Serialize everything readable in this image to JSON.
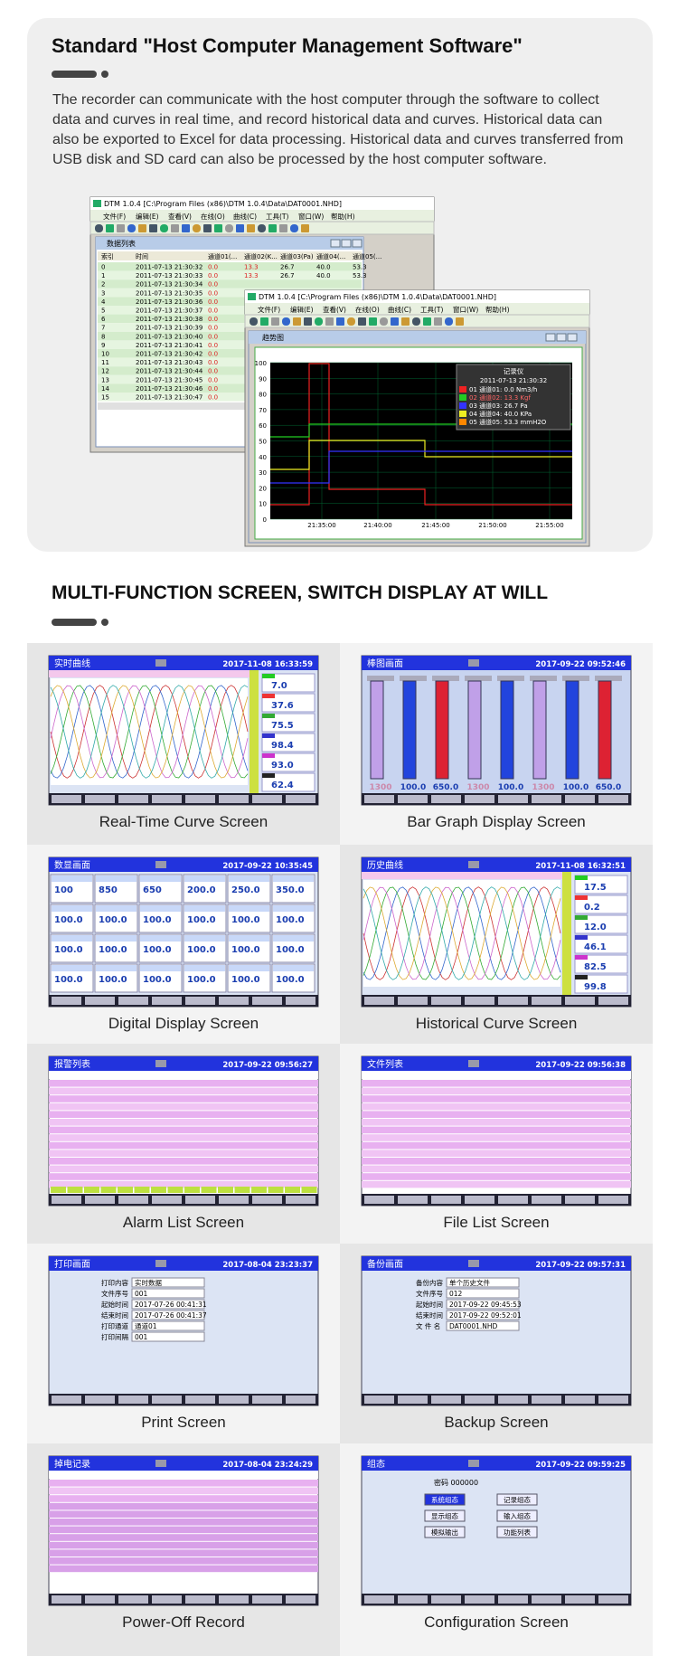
{
  "header": {
    "title": "Standard \"Host Computer Management Software\"",
    "paragraph": "The recorder can communicate with the host computer through the software to collect data and curves in real time, and record historical data and curves. Historical data can also be exported to Excel for data processing. Historical data and curves transferred from USB disk and SD card can also be processed by the host computer software."
  },
  "software": {
    "window_title": "DTM 1.0.4 [C:\\Program Files (x86)\\DTM 1.0.4\\Data\\DAT0001.NHD]",
    "menu": [
      "文件(F)",
      "编辑(E)",
      "查看(V)",
      "在线(O)",
      "曲线(C)",
      "工具(T)",
      "窗口(W)",
      "帮助(H)"
    ],
    "list_title": "数据列表",
    "list_columns": [
      "索引",
      "时间",
      "通道01(...",
      "通道02(K...",
      "通道03(Pa)",
      "通道04(...",
      "通道05(..."
    ],
    "list_rows": [
      [
        "0",
        "2011-07-13 21:30:32",
        "0.0",
        "13.3",
        "26.7",
        "40.0",
        "53.3"
      ],
      [
        "1",
        "2011-07-13 21:30:33",
        "0.0",
        "13.3",
        "26.7",
        "40.0",
        "53.3"
      ],
      [
        "2",
        "2011-07-13 21:30:34",
        "0.0"
      ],
      [
        "3",
        "2011-07-13 21:30:35",
        "0.0"
      ],
      [
        "4",
        "2011-07-13 21:30:36",
        "0.0"
      ],
      [
        "5",
        "2011-07-13 21:30:37",
        "0.0"
      ],
      [
        "6",
        "2011-07-13 21:30:38",
        "0.0"
      ],
      [
        "7",
        "2011-07-13 21:30:39",
        "0.0"
      ],
      [
        "8",
        "2011-07-13 21:30:40",
        "0.0"
      ],
      [
        "9",
        "2011-07-13 21:30:41",
        "0.0"
      ],
      [
        "10",
        "2011-07-13 21:30:42",
        "0.0"
      ],
      [
        "11",
        "2011-07-13 21:30:43",
        "0.0"
      ],
      [
        "12",
        "2011-07-13 21:30:44",
        "0.0"
      ],
      [
        "13",
        "2011-07-13 21:30:45",
        "0.0"
      ],
      [
        "14",
        "2011-07-13 21:30:46",
        "0.0"
      ],
      [
        "15",
        "2011-07-13 21:30:47",
        "0.0"
      ]
    ],
    "trend_title": "趋势图",
    "legend_title": "记录仪",
    "legend_time": "2011-07-13 21:30:32",
    "legend": [
      "01 通道01: 0.0 Nm3/h",
      "02 通道02: 13.3 Kgf",
      "03 通道03: 26.7 Pa",
      "04 通道04: 40.0 KPa",
      "05 通道05: 53.3 mmH2O"
    ],
    "y_labels": [
      "100",
      "90",
      "80",
      "70",
      "60",
      "50",
      "40",
      "30",
      "20",
      "10",
      "0"
    ],
    "x_labels": [
      "21:35:00",
      "21:40:00",
      "21:45:00",
      "21:50:00",
      "21:55:00"
    ]
  },
  "section2": {
    "title": "MULTI-FUNCTION SCREEN, SWITCH DISPLAY AT WILL"
  },
  "screens": [
    {
      "caption": "Real-Time Curve Screen",
      "title": "实时曲线",
      "time": "2017-11-08 16:33:59",
      "readouts": [
        "7.0",
        "37.6",
        "75.5",
        "98.4",
        "93.0",
        "62.4"
      ]
    },
    {
      "caption": "Bar Graph Display Screen",
      "title": "棒图画面",
      "time": "2017-09-22 09:52:46",
      "readouts": [
        "1300",
        "100.0",
        "650.0",
        "1300",
        "100.0",
        "1300",
        "100.0",
        "650.0"
      ]
    },
    {
      "caption": "Digital Display Screen",
      "title": "数显画面",
      "time": "2017-09-22 10:35:45",
      "readouts": [
        "100",
        "850",
        "650",
        "200.0",
        "250.0",
        "350.0",
        "100.0",
        "100.0",
        "100.0",
        "100.0",
        "100.0",
        "100.0",
        "100.0",
        "100.0",
        "100.0",
        "100.0",
        "100.0",
        "100.0",
        "100.0",
        "100.0",
        "100.0",
        "100.0",
        "100.0",
        "100.0"
      ]
    },
    {
      "caption": "Historical Curve Screen",
      "title": "历史曲线",
      "time": "2017-11-08 16:32:51",
      "readouts": [
        "17.5",
        "0.2",
        "12.0",
        "46.1",
        "82.5",
        "99.8"
      ]
    },
    {
      "caption": "Alarm List Screen",
      "title": "报警列表",
      "time": "2017-09-22 09:56:27"
    },
    {
      "caption": "File List Screen",
      "title": "文件列表",
      "time": "2017-09-22 09:56:38"
    },
    {
      "caption": "Print Screen",
      "title": "打印画面",
      "time": "2017-08-04 23:23:37",
      "fields": [
        [
          "打印内容",
          "实时数据"
        ],
        [
          "文件序号",
          "001"
        ],
        [
          "起始时间",
          "2017-07-26 00:41:31"
        ],
        [
          "结束时间",
          "2017-07-26 00:41:37"
        ],
        [
          "打印通道",
          "通道01"
        ],
        [
          "打印间隔",
          "001"
        ]
      ]
    },
    {
      "caption": "Backup Screen",
      "title": "备份画面",
      "time": "2017-09-22 09:57:31",
      "fields": [
        [
          "备份内容",
          "单个历史文件"
        ],
        [
          "文件序号",
          "012"
        ],
        [
          "起始时间",
          "2017-09-22 09:45:53"
        ],
        [
          "结束时间",
          "2017-09-22 09:52:01"
        ],
        [
          "文 件 名",
          "DAT0001.NHD"
        ]
      ]
    },
    {
      "caption": "Power-Off Record",
      "title": "掉电记录",
      "time": "2017-08-04 23:24:29"
    },
    {
      "caption": "Configuration Screen",
      "title": "组态",
      "time": "2017-09-22 09:59:25",
      "password": "密码 000000",
      "buttons": [
        "系统组态",
        "记录组态",
        "显示组态",
        "输入组态",
        "模拟输出",
        "功能列表"
      ]
    }
  ]
}
